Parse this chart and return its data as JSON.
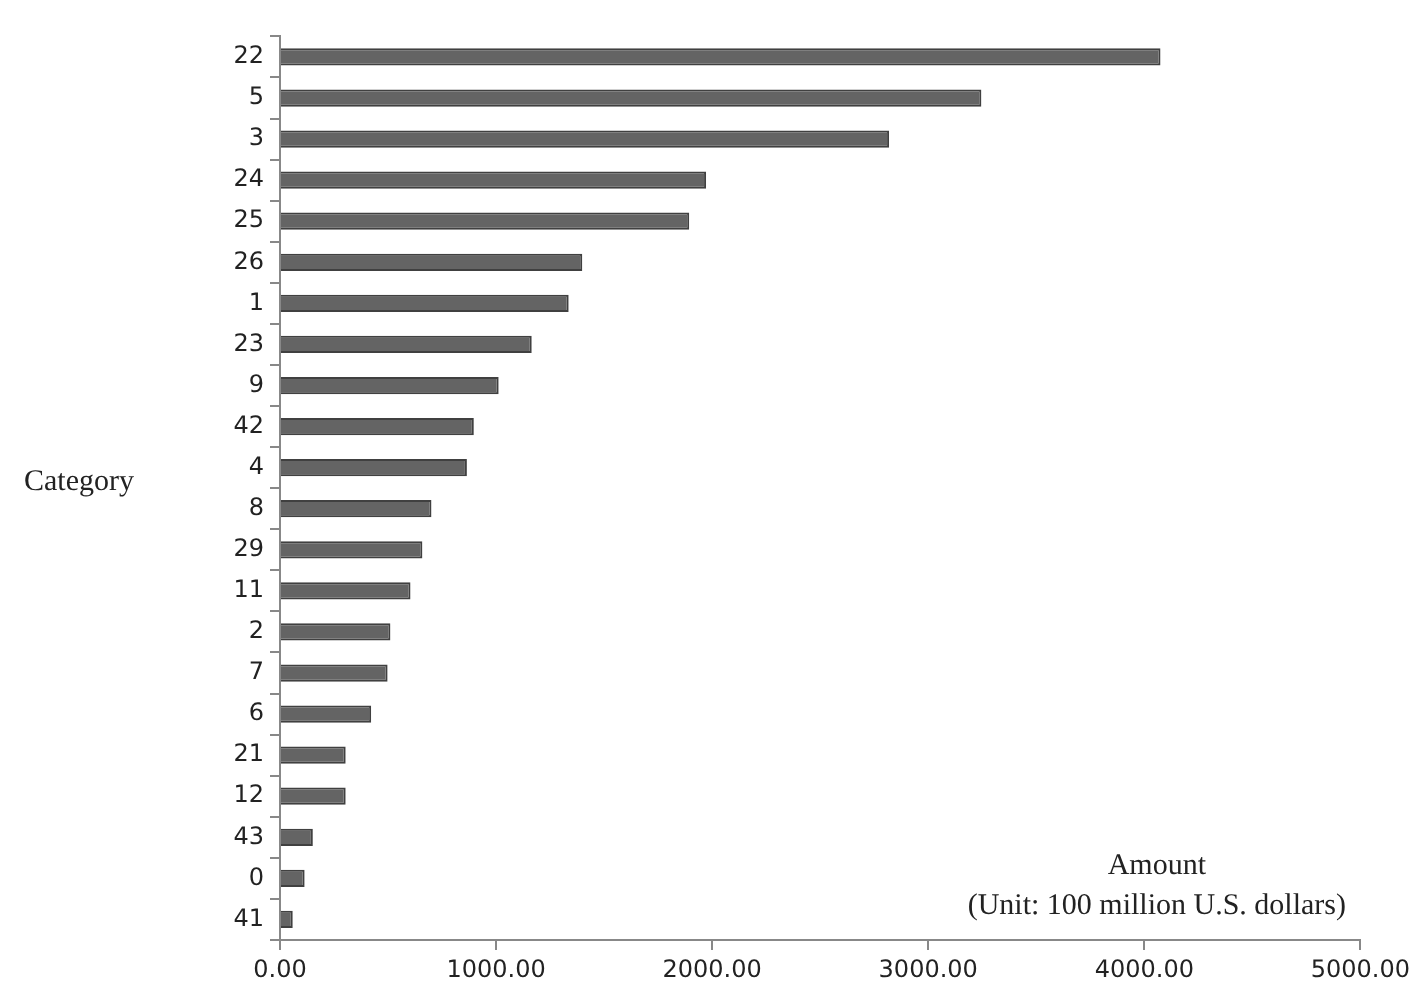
{
  "chart_data": {
    "type": "bar",
    "orientation": "horizontal",
    "xlabel": "Amount\n(Unit: 100 million U.S. dollars)",
    "ylabel": "Category",
    "categories": [
      "22",
      "5",
      "3",
      "24",
      "25",
      "26",
      "1",
      "23",
      "9",
      "42",
      "4",
      "8",
      "29",
      "11",
      "2",
      "7",
      "6",
      "21",
      "12",
      "43",
      "0",
      "41"
    ],
    "values": [
      4075,
      3246,
      2819,
      1972,
      1894,
      1399,
      1336,
      1165,
      1012,
      897,
      865,
      701,
      659,
      604,
      511,
      498,
      422,
      304,
      304,
      152,
      114,
      59
    ],
    "color": "#646464",
    "xlim": [
      0,
      5000
    ],
    "xticks": [
      {
        "value": 0,
        "label": "0.00"
      },
      {
        "value": 1000,
        "label": "1000.00"
      },
      {
        "value": 2000,
        "label": "2000.00"
      },
      {
        "value": 3000,
        "label": "3000.00"
      },
      {
        "value": 4000,
        "label": "4000.00"
      },
      {
        "value": 5000,
        "label": "5000.00"
      }
    ],
    "grid": false,
    "legend": false
  }
}
